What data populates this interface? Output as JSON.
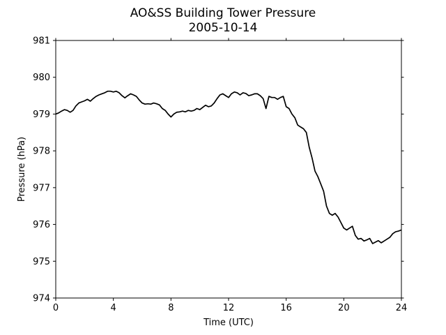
{
  "chart_data": {
    "type": "line",
    "title": "AO&SS Building Tower Pressure",
    "subtitle": "2005-10-14",
    "xlabel": "Time (UTC)",
    "ylabel": "Pressure (hPa)",
    "xlim": [
      0,
      24
    ],
    "ylim": [
      974,
      981
    ],
    "grid": false,
    "x_ticks": [
      0,
      4,
      8,
      12,
      16,
      20,
      24
    ],
    "x_tick_labels": [
      "0",
      "4",
      "8",
      "12",
      "16",
      "20",
      "24"
    ],
    "y_ticks": [
      974,
      975,
      976,
      977,
      978,
      979,
      980,
      981
    ],
    "y_tick_labels": [
      "974",
      "975",
      "976",
      "977",
      "978",
      "979",
      "980",
      "981"
    ],
    "series": [
      {
        "color": "#000000",
        "x": [
          0,
          0.2,
          0.4,
          0.6,
          0.8,
          1.0,
          1.2,
          1.4,
          1.6,
          1.8,
          2.0,
          2.2,
          2.4,
          2.6,
          2.8,
          3.0,
          3.2,
          3.4,
          3.6,
          3.8,
          4.0,
          4.2,
          4.4,
          4.6,
          4.8,
          5.0,
          5.2,
          5.4,
          5.6,
          5.8,
          6.0,
          6.2,
          6.4,
          6.6,
          6.8,
          7.0,
          7.2,
          7.4,
          7.6,
          7.8,
          8.0,
          8.2,
          8.4,
          8.6,
          8.8,
          9.0,
          9.2,
          9.4,
          9.6,
          9.8,
          10.0,
          10.2,
          10.4,
          10.6,
          10.8,
          11.0,
          11.2,
          11.4,
          11.6,
          11.8,
          12.0,
          12.2,
          12.4,
          12.6,
          12.8,
          13.0,
          13.2,
          13.4,
          13.6,
          13.8,
          14.0,
          14.2,
          14.4,
          14.6,
          14.8,
          15.0,
          15.2,
          15.4,
          15.6,
          15.8,
          16.0,
          16.2,
          16.4,
          16.6,
          16.8,
          17.0,
          17.2,
          17.4,
          17.6,
          17.8,
          18.0,
          18.2,
          18.4,
          18.6,
          18.8,
          19.0,
          19.2,
          19.4,
          19.6,
          19.8,
          20.0,
          20.2,
          20.4,
          20.6,
          20.8,
          21.0,
          21.2,
          21.4,
          21.6,
          21.8,
          22.0,
          22.2,
          22.4,
          22.6,
          22.8,
          23.0,
          23.2,
          23.4,
          23.6,
          23.8,
          24.0
        ],
        "y": [
          979.0,
          979.03,
          979.08,
          979.12,
          979.1,
          979.05,
          979.1,
          979.22,
          979.3,
          979.33,
          979.36,
          979.4,
          979.35,
          979.42,
          979.48,
          979.52,
          979.55,
          979.58,
          979.62,
          979.62,
          979.6,
          979.62,
          979.58,
          979.5,
          979.44,
          979.5,
          979.55,
          979.52,
          979.48,
          979.38,
          979.3,
          979.27,
          979.28,
          979.27,
          979.3,
          979.28,
          979.25,
          979.15,
          979.1,
          979.0,
          978.92,
          979.0,
          979.05,
          979.06,
          979.08,
          979.06,
          979.1,
          979.08,
          979.1,
          979.15,
          979.12,
          979.18,
          979.24,
          979.2,
          979.22,
          979.3,
          979.42,
          979.52,
          979.55,
          979.5,
          979.45,
          979.55,
          979.6,
          979.58,
          979.52,
          979.58,
          979.56,
          979.5,
          979.52,
          979.55,
          979.55,
          979.5,
          979.42,
          979.15,
          979.48,
          979.45,
          979.45,
          979.4,
          979.45,
          979.48,
          979.2,
          979.15,
          979.0,
          978.9,
          978.7,
          978.65,
          978.6,
          978.5,
          978.1,
          977.8,
          977.45,
          977.3,
          977.1,
          976.9,
          976.5,
          976.3,
          976.25,
          976.3,
          976.2,
          976.05,
          975.9,
          975.85,
          975.9,
          975.95,
          975.7,
          975.6,
          975.62,
          975.55,
          975.58,
          975.62,
          975.48,
          975.52,
          975.56,
          975.5,
          975.55,
          975.6,
          975.65,
          975.75,
          975.8,
          975.82,
          975.85
        ]
      }
    ]
  }
}
